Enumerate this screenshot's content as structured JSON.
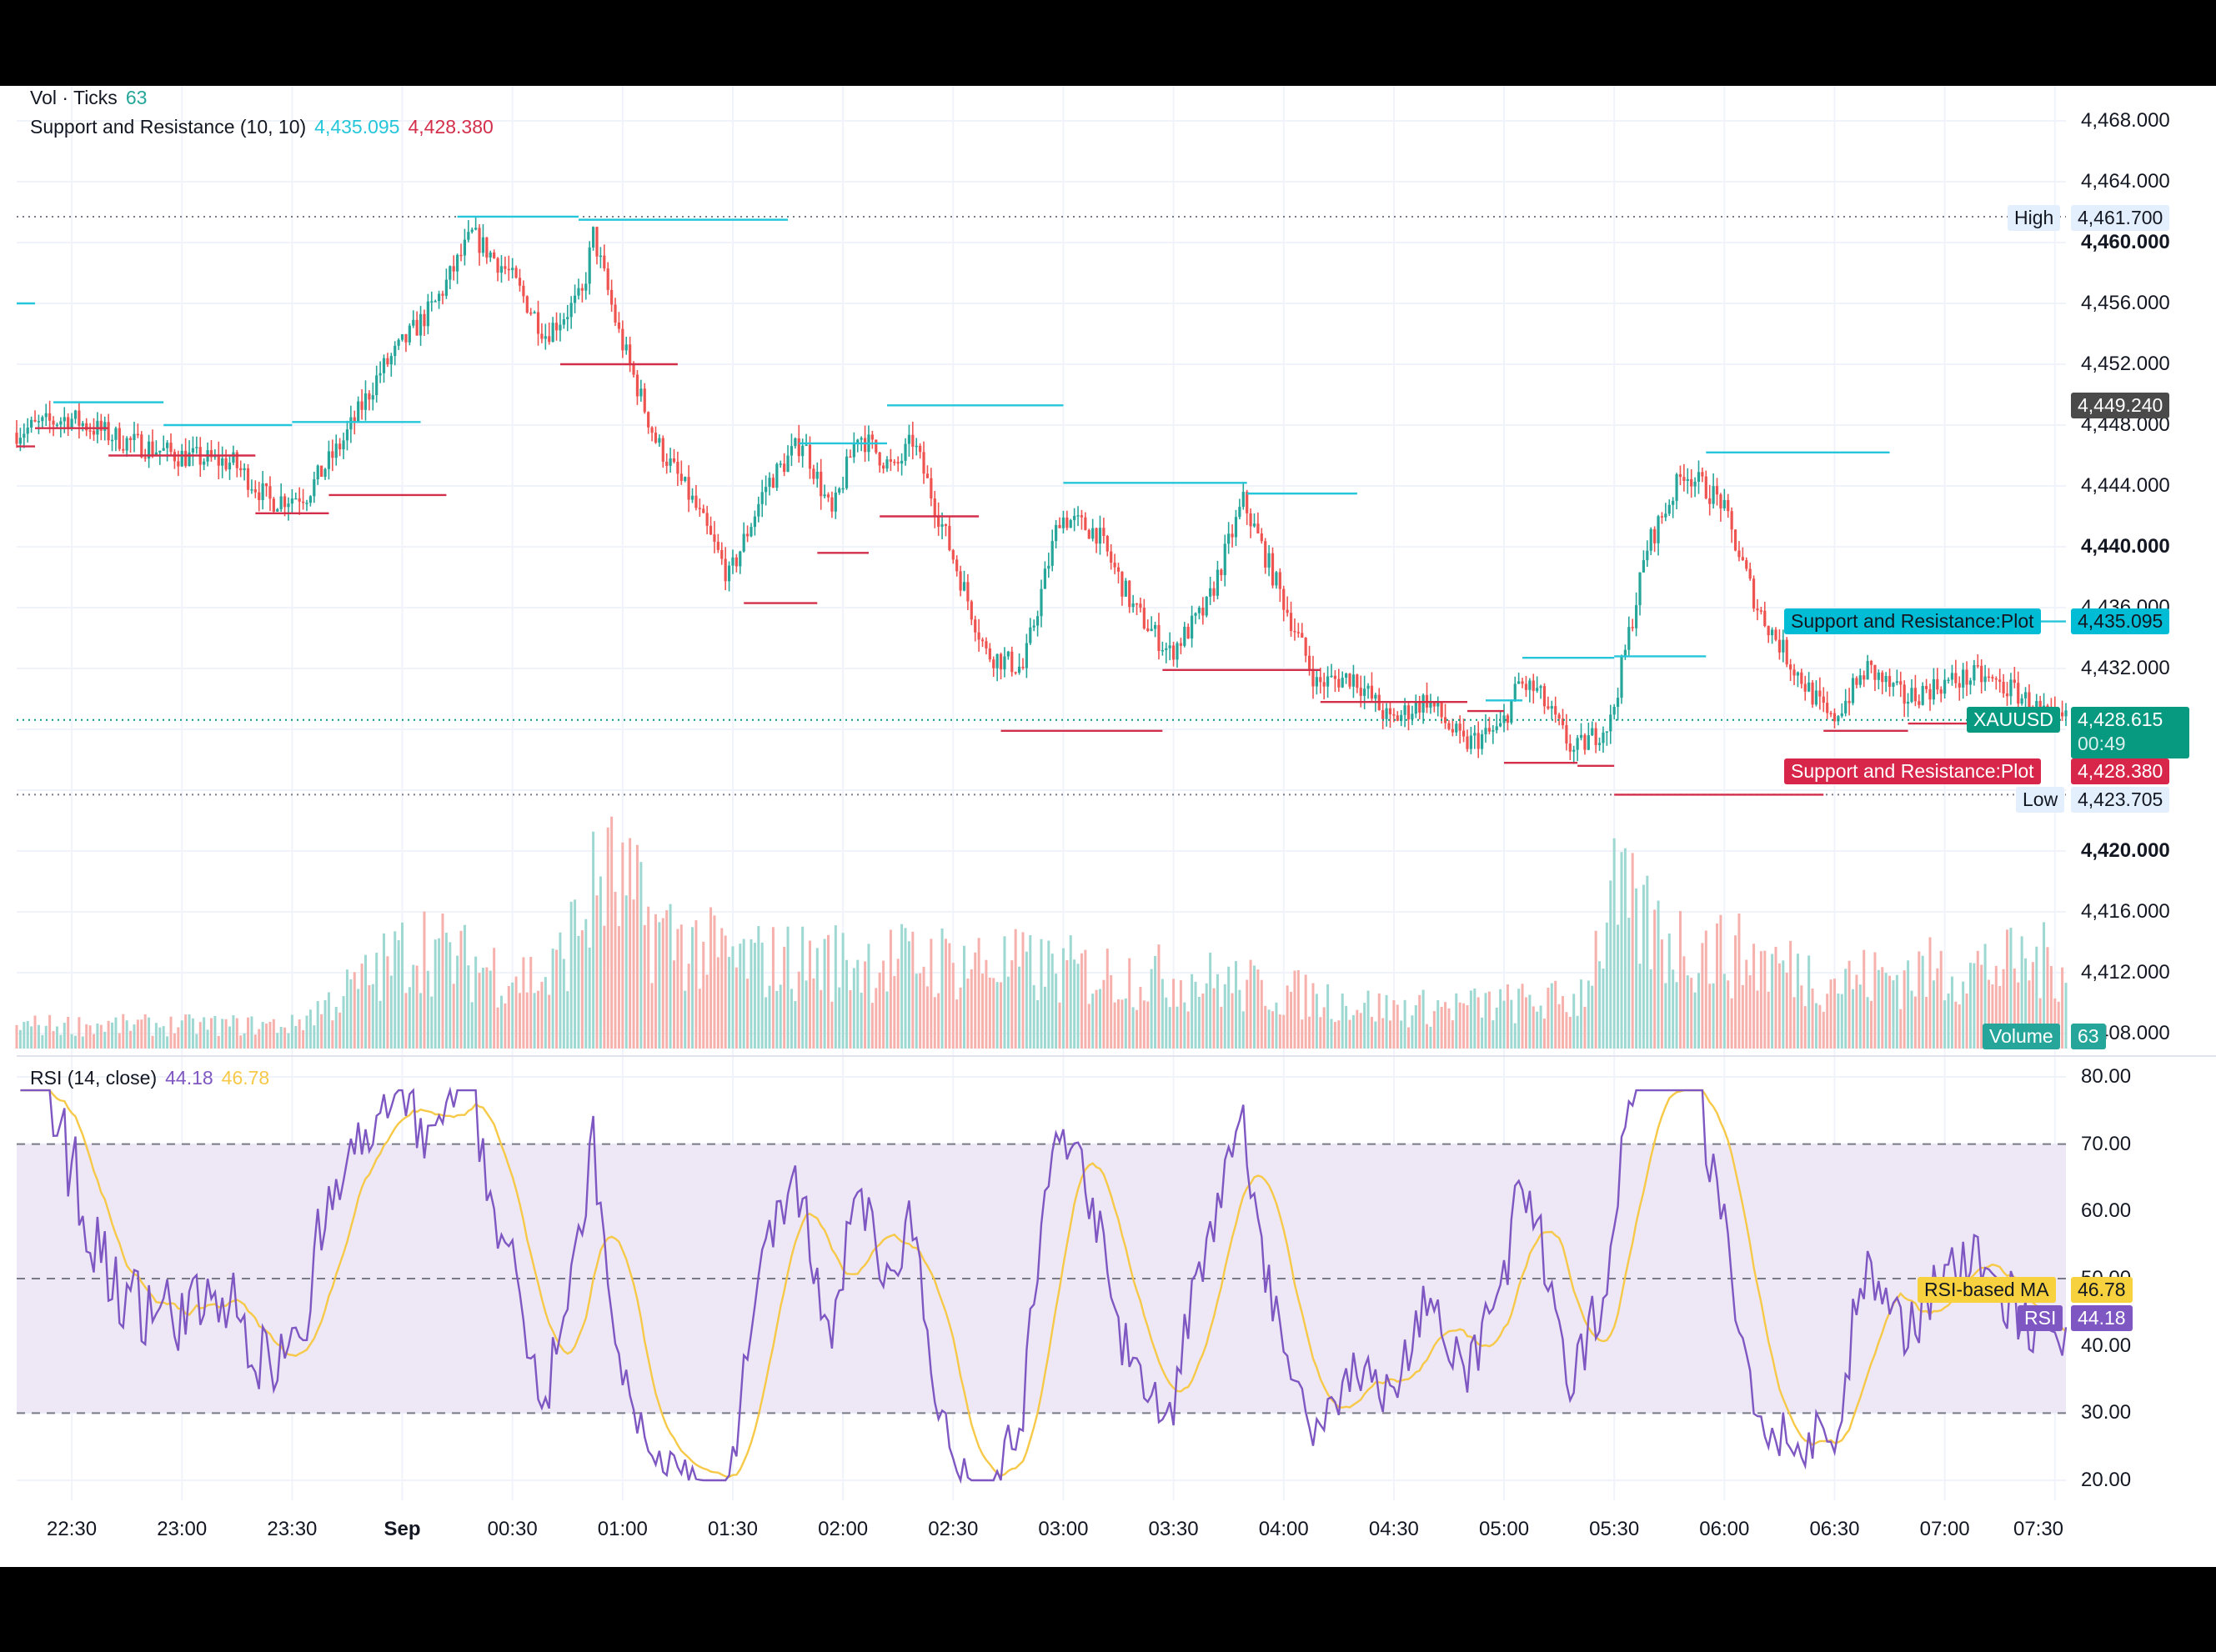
{
  "colors": {
    "up": "#26a69a",
    "down": "#ef5350",
    "support_line": "#d32f4b",
    "resistance_line": "#26c6da",
    "rsi": "#7e57c2",
    "rsi_ma": "#f7c948",
    "rsi_band": "#ede7f6",
    "price_tag": "#089981"
  },
  "legend": {
    "vol_ticks": {
      "label": "Vol · Ticks",
      "value": "63"
    },
    "snr": {
      "label": "Support and Resistance (10, 10)",
      "resistance": "4,435.095",
      "support": "4,428.380"
    },
    "rsi": {
      "label": "RSI (14, close)",
      "rsi": "44.18",
      "ma": "46.78"
    }
  },
  "price_axis": {
    "ticks": [
      "4,468.000",
      "4,464.000",
      "4,460.000",
      "4,456.000",
      "4,452.000",
      "4,448.000",
      "4,444.000",
      "4,440.000",
      "4,436.000",
      "4,432.000",
      "4,420.000",
      "4,416.000",
      "4,412.000",
      "4,408.000"
    ],
    "bold_ticks": [
      "4,460.000",
      "4,440.000",
      "4,420.000"
    ]
  },
  "rsi_axis": {
    "ticks": [
      "80.00",
      "70.00",
      "60.00",
      "50.00",
      "40.00",
      "30.00",
      "20.00"
    ]
  },
  "time_axis": {
    "labels": [
      "22:30",
      "23:00",
      "23:30",
      "Sep",
      "00:30",
      "01:00",
      "01:30",
      "02:00",
      "02:30",
      "03:00",
      "03:30",
      "04:00",
      "04:30",
      "05:00",
      "05:30",
      "06:00",
      "06:30",
      "07:00",
      "07:30"
    ]
  },
  "tags": {
    "high": {
      "label": "High",
      "value": "4,461.700"
    },
    "low": {
      "label": "Low",
      "value": "4,423.705"
    },
    "last": {
      "value": "4,449.240"
    },
    "resistance": {
      "label": "Support and Resistance:Plot",
      "value": "4,435.095"
    },
    "symbol": {
      "label": "XAUUSD",
      "value": "4,428.615",
      "countdown": "00:49"
    },
    "support": {
      "label": "Support and Resistance:Plot",
      "value": "4,428.380"
    },
    "volume": {
      "label": "Volume",
      "value": "63"
    },
    "rsi_ma": {
      "label": "RSI-based MA",
      "value": "46.78"
    },
    "rsi": {
      "label": "RSI",
      "value": "44.18"
    }
  },
  "chart_data": [
    {
      "type": "candlestick",
      "title": "XAUUSD",
      "x_range": [
        "22:15",
        "07:33"
      ],
      "ylim": [
        4418,
        4470
      ],
      "high": 4461.7,
      "low": 4423.705,
      "close": 4428.615,
      "price_path": [
        [
          "22:15",
          4447.5
        ],
        [
          "22:30",
          4448.5
        ],
        [
          "22:45",
          4447.0
        ],
        [
          "23:00",
          4446.0
        ],
        [
          "23:15",
          4445.5
        ],
        [
          "23:25",
          4443.0
        ],
        [
          "23:35",
          4443.5
        ],
        [
          "23:45",
          4447.0
        ],
        [
          "23:55",
          4451.5
        ],
        [
          "00:10",
          4456.0
        ],
        [
          "00:20",
          4460.5
        ],
        [
          "00:30",
          4458.0
        ],
        [
          "00:40",
          4454.0
        ],
        [
          "00:50",
          4456.5
        ],
        [
          "00:53",
          4460.5
        ],
        [
          "01:00",
          4454.0
        ],
        [
          "01:10",
          4447.0
        ],
        [
          "01:20",
          4443.0
        ],
        [
          "01:30",
          4438.0
        ],
        [
          "01:40",
          4444.0
        ],
        [
          "01:50",
          4447.0
        ],
        [
          "01:58",
          4442.0
        ],
        [
          "02:05",
          4447.5
        ],
        [
          "02:15",
          4445.0
        ],
        [
          "02:20",
          4447.0
        ],
        [
          "02:30",
          4440.0
        ],
        [
          "02:40",
          4433.0
        ],
        [
          "02:50",
          4432.0
        ],
        [
          "03:00",
          4442.0
        ],
        [
          "03:10",
          4441.0
        ],
        [
          "03:20",
          4436.0
        ],
        [
          "03:30",
          4433.0
        ],
        [
          "03:40",
          4436.0
        ],
        [
          "03:50",
          4443.0
        ],
        [
          "04:00",
          4437.0
        ],
        [
          "04:10",
          4431.0
        ],
        [
          "04:20",
          4431.5
        ],
        [
          "04:30",
          4428.5
        ],
        [
          "04:40",
          4430.0
        ],
        [
          "04:50",
          4427.0
        ],
        [
          "05:00",
          4428.0
        ],
        [
          "05:05",
          4431.0
        ],
        [
          "05:10",
          4430.5
        ],
        [
          "05:20",
          4426.5
        ],
        [
          "05:30",
          4428.5
        ],
        [
          "05:40",
          4440.0
        ],
        [
          "05:50",
          4445.0
        ],
        [
          "06:00",
          4443.0
        ],
        [
          "06:10",
          4436.0
        ],
        [
          "06:20",
          4432.0
        ],
        [
          "06:30",
          4428.5
        ],
        [
          "06:40",
          4432.0
        ],
        [
          "06:50",
          4430.0
        ],
        [
          "07:00",
          4431.0
        ],
        [
          "07:10",
          4431.5
        ],
        [
          "07:20",
          4430.5
        ],
        [
          "07:30",
          4428.6
        ]
      ]
    },
    {
      "type": "line",
      "title": "Support and Resistance (10, 10)",
      "resistance_levels": [
        {
          "from": "22:15",
          "to": "22:20",
          "y": 4456.0
        },
        {
          "from": "22:25",
          "to": "22:55",
          "y": 4449.5
        },
        {
          "from": "22:55",
          "to": "23:30",
          "y": 4448.0
        },
        {
          "from": "23:30",
          "to": "00:05",
          "y": 4448.2
        },
        {
          "from": "00:15",
          "to": "00:48",
          "y": 4461.7
        },
        {
          "from": "00:48",
          "to": "01:45",
          "y": 4461.5
        },
        {
          "from": "01:48",
          "to": "02:12",
          "y": 4446.8
        },
        {
          "from": "02:12",
          "to": "03:00",
          "y": 4449.3
        },
        {
          "from": "03:00",
          "to": "03:50",
          "y": 4444.2
        },
        {
          "from": "03:50",
          "to": "04:20",
          "y": 4443.5
        },
        {
          "from": "04:55",
          "to": "05:05",
          "y": 4429.9
        },
        {
          "from": "05:05",
          "to": "05:30",
          "y": 4432.7
        },
        {
          "from": "05:30",
          "to": "05:55",
          "y": 4432.8
        },
        {
          "from": "05:55",
          "to": "06:45",
          "y": 4446.2
        },
        {
          "from": "06:45",
          "to": "07:33",
          "y": 4435.095
        }
      ],
      "support_levels": [
        {
          "from": "22:15",
          "to": "22:20",
          "y": 4446.6
        },
        {
          "from": "22:20",
          "to": "22:40",
          "y": 4447.8
        },
        {
          "from": "22:40",
          "to": "23:20",
          "y": 4446.0
        },
        {
          "from": "23:20",
          "to": "23:40",
          "y": 4442.2
        },
        {
          "from": "23:40",
          "to": "00:12",
          "y": 4443.4
        },
        {
          "from": "00:43",
          "to": "01:15",
          "y": 4452.0
        },
        {
          "from": "01:33",
          "to": "01:53",
          "y": 4436.3
        },
        {
          "from": "01:53",
          "to": "02:07",
          "y": 4439.6
        },
        {
          "from": "02:10",
          "to": "02:37",
          "y": 4442.0
        },
        {
          "from": "02:43",
          "to": "03:27",
          "y": 4427.9
        },
        {
          "from": "03:27",
          "to": "04:10",
          "y": 4431.9
        },
        {
          "from": "04:10",
          "to": "04:50",
          "y": 4429.8
        },
        {
          "from": "04:50",
          "to": "05:00",
          "y": 4429.2
        },
        {
          "from": "05:00",
          "to": "05:20",
          "y": 4425.8
        },
        {
          "from": "05:20",
          "to": "05:30",
          "y": 4425.6
        },
        {
          "from": "05:30",
          "to": "06:27",
          "y": 4423.7
        },
        {
          "from": "06:27",
          "to": "06:50",
          "y": 4427.9
        },
        {
          "from": "06:50",
          "to": "07:20",
          "y": 4428.38
        }
      ]
    },
    {
      "type": "bar",
      "title": "Vol · Ticks",
      "last_value": 63,
      "activity_profile": [
        [
          "22:15",
          0.12
        ],
        [
          "23:30",
          0.12
        ],
        [
          "23:50",
          0.35
        ],
        [
          "00:05",
          0.55
        ],
        [
          "00:15",
          0.45
        ],
        [
          "00:40",
          0.35
        ],
        [
          "00:55",
          0.9
        ],
        [
          "01:10",
          0.6
        ],
        [
          "01:30",
          0.45
        ],
        [
          "02:30",
          0.45
        ],
        [
          "03:00",
          0.4
        ],
        [
          "03:40",
          0.35
        ],
        [
          "04:30",
          0.2
        ],
        [
          "05:20",
          0.25
        ],
        [
          "05:30",
          0.75
        ],
        [
          "05:45",
          0.55
        ],
        [
          "06:10",
          0.45
        ],
        [
          "06:30",
          0.35
        ],
        [
          "07:00",
          0.4
        ],
        [
          "07:33",
          0.45
        ]
      ]
    },
    {
      "type": "line",
      "title": "RSI (14, close)",
      "ylim": [
        17,
        82
      ],
      "bands": [
        30,
        50,
        70
      ],
      "rsi_last": 44.18,
      "ma_last": 46.78
    }
  ]
}
